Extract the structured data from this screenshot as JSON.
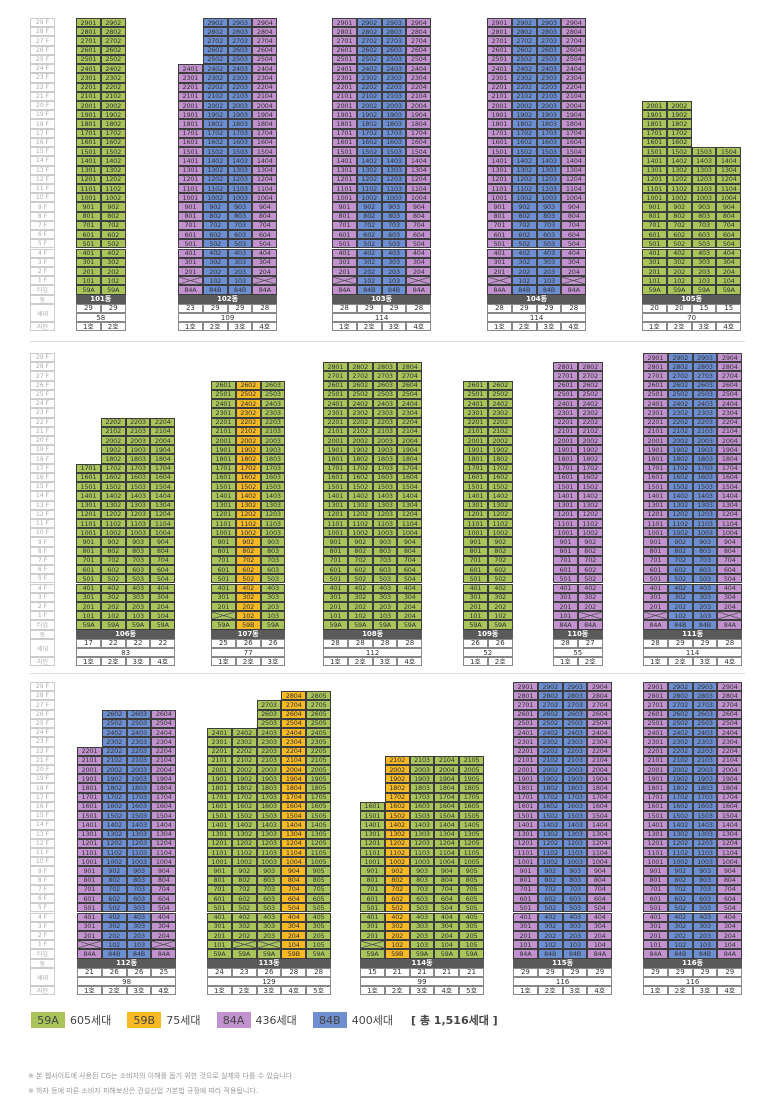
{
  "types": {
    "59A": {
      "color": "#a8c45a"
    },
    "59B": {
      "color": "#f7b924"
    },
    "84A": {
      "color": "#c292cf"
    },
    "84B": {
      "color": "#6d8fd1"
    }
  },
  "axis_labels": {
    "floors": [
      "29 F",
      "28 F",
      "27 F",
      "26 F",
      "25 F",
      "24 F",
      "23 F",
      "22 F",
      "21 F",
      "20 F",
      "19 F",
      "18 F",
      "17 F",
      "16 F",
      "15 F",
      "14 F",
      "13 F",
      "12 F",
      "11 F",
      "10 F",
      "9 F",
      "8 F",
      "7 F",
      "6 F",
      "5 F",
      "4 F",
      "3 F",
      "2 F",
      "1 F"
    ],
    "type": "타입",
    "dong": "동",
    "households": "세대",
    "line": "라인"
  },
  "rows": [
    [
      {
        "name": "101동",
        "total": "58",
        "lines": [
          {
            "label": "1호",
            "type": "59A",
            "top": 29,
            "bottom": 1,
            "count": "29"
          },
          {
            "label": "2호",
            "type": "59A",
            "top": 29,
            "bottom": 1,
            "count": "29"
          }
        ]
      },
      {
        "name": "102동",
        "total": "109",
        "lines": [
          {
            "label": "1호",
            "type": "84A",
            "top": 24,
            "bottom": 2,
            "count": "23"
          },
          {
            "label": "2호",
            "type": "84B",
            "top": 29,
            "bottom": 1,
            "count": "29"
          },
          {
            "label": "3호",
            "type": "84B",
            "top": 29,
            "bottom": 1,
            "count": "29"
          },
          {
            "label": "4호",
            "type": "84A",
            "top": 29,
            "bottom": 2,
            "count": "28"
          }
        ]
      },
      {
        "name": "103동",
        "total": "114",
        "lines": [
          {
            "label": "1호",
            "type": "84A",
            "top": 29,
            "bottom": 2,
            "count": "28"
          },
          {
            "label": "2호",
            "type": "84B",
            "top": 29,
            "bottom": 1,
            "count": "29"
          },
          {
            "label": "3호",
            "type": "84B",
            "top": 29,
            "bottom": 1,
            "count": "29"
          },
          {
            "label": "4호",
            "type": "84A",
            "top": 29,
            "bottom": 2,
            "count": "28"
          }
        ]
      },
      {
        "name": "104동",
        "total": "114",
        "lines": [
          {
            "label": "1호",
            "type": "84A",
            "top": 29,
            "bottom": 2,
            "count": "28"
          },
          {
            "label": "2호",
            "type": "84B",
            "top": 29,
            "bottom": 1,
            "count": "29"
          },
          {
            "label": "3호",
            "type": "84B",
            "top": 29,
            "bottom": 1,
            "count": "29"
          },
          {
            "label": "4호",
            "type": "84A",
            "top": 29,
            "bottom": 2,
            "count": "28"
          }
        ]
      },
      {
        "name": "105동",
        "total": "70",
        "lines": [
          {
            "label": "1호",
            "type": "59A",
            "top": 20,
            "bottom": 1,
            "count": "20"
          },
          {
            "label": "2호",
            "type": "59A",
            "top": 20,
            "bottom": 1,
            "count": "20"
          },
          {
            "label": "3호",
            "type": "59A",
            "top": 15,
            "bottom": 1,
            "count": "15"
          },
          {
            "label": "4호",
            "type": "59A",
            "top": 15,
            "bottom": 1,
            "count": "15"
          }
        ]
      }
    ],
    [
      {
        "name": "106동",
        "total": "83",
        "lines": [
          {
            "label": "1호",
            "type": "59A",
            "top": 17,
            "bottom": 1,
            "count": "17"
          },
          {
            "label": "2호",
            "type": "59A",
            "top": 22,
            "bottom": 1,
            "count": "22"
          },
          {
            "label": "3호",
            "type": "59A",
            "top": 22,
            "bottom": 1,
            "count": "22"
          },
          {
            "label": "4호",
            "type": "59A",
            "top": 22,
            "bottom": 1,
            "count": "22"
          }
        ]
      },
      {
        "name": "107동",
        "total": "77",
        "lines": [
          {
            "label": "1호",
            "type": "59A",
            "top": 26,
            "bottom": 2,
            "count": "25"
          },
          {
            "label": "2호",
            "type": "59B",
            "top": 26,
            "bottom": 1,
            "count": "26"
          },
          {
            "label": "3호",
            "type": "59A",
            "top": 26,
            "bottom": 1,
            "count": "26"
          }
        ]
      },
      {
        "name": "108동",
        "total": "112",
        "overrides": {
          "1-4": "204"
        },
        "lines": [
          {
            "label": "1호",
            "type": "59A",
            "top": 28,
            "bottom": 1,
            "count": "28"
          },
          {
            "label": "2호",
            "type": "59A",
            "top": 28,
            "bottom": 1,
            "count": "28"
          },
          {
            "label": "3호",
            "type": "59A",
            "top": 28,
            "bottom": 1,
            "count": "28"
          },
          {
            "label": "4호",
            "type": "59A",
            "top": 28,
            "bottom": 1,
            "count": "28"
          }
        ]
      },
      {
        "name": "109동",
        "total": "52",
        "lines": [
          {
            "label": "1호",
            "type": "59A",
            "top": 26,
            "bottom": 1,
            "count": "26"
          },
          {
            "label": "2호",
            "type": "59A",
            "top": 26,
            "bottom": 1,
            "count": "26"
          }
        ]
      },
      {
        "name": "110동",
        "total": "55",
        "lines": [
          {
            "label": "1호",
            "type": "84A",
            "top": 28,
            "bottom": 1,
            "count": "28"
          },
          {
            "label": "2호",
            "type": "84A",
            "top": 28,
            "bottom": 2,
            "count": "27"
          }
        ]
      },
      {
        "name": "111동",
        "total": "114",
        "lines": [
          {
            "label": "1호",
            "type": "84A",
            "top": 29,
            "bottom": 2,
            "count": "28"
          },
          {
            "label": "2호",
            "type": "84B",
            "top": 29,
            "bottom": 1,
            "count": "29"
          },
          {
            "label": "3호",
            "type": "84B",
            "top": 29,
            "bottom": 1,
            "count": "29"
          },
          {
            "label": "4호",
            "type": "84A",
            "top": 29,
            "bottom": 2,
            "count": "28"
          }
        ]
      }
    ],
    [
      {
        "name": "112동",
        "total": "98",
        "lines": [
          {
            "label": "1호",
            "type": "84A",
            "top": 22,
            "bottom": 2,
            "count": "21"
          },
          {
            "label": "2호",
            "type": "84B",
            "top": 26,
            "bottom": 1,
            "count": "26"
          },
          {
            "label": "3호",
            "type": "84B",
            "top": 26,
            "bottom": 1,
            "count": "26"
          },
          {
            "label": "4호",
            "type": "84A",
            "top": 26,
            "bottom": 2,
            "count": "25"
          }
        ]
      },
      {
        "name": "113동",
        "total": "129",
        "lines": [
          {
            "label": "1호",
            "type": "59A",
            "top": 24,
            "bottom": 1,
            "count": "24"
          },
          {
            "label": "2호",
            "type": "59A",
            "top": 24,
            "bottom": 2,
            "count": "23"
          },
          {
            "label": "3호",
            "type": "59A",
            "top": 27,
            "bottom": 2,
            "count": "26"
          },
          {
            "label": "4호",
            "type": "59B",
            "top": 28,
            "bottom": 1,
            "count": "28"
          },
          {
            "label": "5호",
            "type": "59A",
            "top": 28,
            "bottom": 1,
            "count": "28"
          }
        ]
      },
      {
        "name": "114동",
        "total": "99",
        "lines": [
          {
            "label": "1호",
            "type": "59A",
            "top": 16,
            "bottom": 2,
            "count": "15"
          },
          {
            "label": "2호",
            "type": "59B",
            "top": 21,
            "bottom": 1,
            "count": "21"
          },
          {
            "label": "3호",
            "type": "59A",
            "top": 21,
            "bottom": 1,
            "count": "21"
          },
          {
            "label": "4호",
            "type": "59A",
            "top": 21,
            "bottom": 1,
            "count": "21"
          },
          {
            "label": "5호",
            "type": "59A",
            "top": 21,
            "bottom": 1,
            "count": "21"
          }
        ]
      },
      {
        "name": "115동",
        "total": "116",
        "lines": [
          {
            "label": "1호",
            "type": "84A",
            "top": 29,
            "bottom": 1,
            "count": "29"
          },
          {
            "label": "2호",
            "type": "84B",
            "top": 29,
            "bottom": 1,
            "count": "29"
          },
          {
            "label": "3호",
            "type": "84B",
            "top": 29,
            "bottom": 1,
            "count": "29"
          },
          {
            "label": "4호",
            "type": "84A",
            "top": 29,
            "bottom": 1,
            "count": "29"
          }
        ]
      },
      {
        "name": "116동",
        "total": "116",
        "lines": [
          {
            "label": "1호",
            "type": "84A",
            "top": 29,
            "bottom": 1,
            "count": "29"
          },
          {
            "label": "2호",
            "type": "84B",
            "top": 29,
            "bottom": 1,
            "count": "29"
          },
          {
            "label": "3호",
            "type": "84B",
            "top": 29,
            "bottom": 1,
            "count": "29"
          },
          {
            "label": "4호",
            "type": "84A",
            "top": 29,
            "bottom": 1,
            "count": "29"
          }
        ]
      }
    ]
  ],
  "legend": {
    "items": [
      {
        "type": "59A",
        "count": "605세대"
      },
      {
        "type": "59B",
        "count": "75세대"
      },
      {
        "type": "84A",
        "count": "436세대"
      },
      {
        "type": "84B",
        "count": "400세대"
      }
    ],
    "total": "[ 총 1,516세대 ]"
  },
  "notes": [
    "※ 본 웹사이트에 사용된 CG는 소비자의 이해를 돕기 위한 것으로 실제와 다를 수 있습니다.",
    "※ 하자 등에 따른 소비자 피해보상은 건설산업 기본법 규정에 따라 적용됩니다."
  ]
}
